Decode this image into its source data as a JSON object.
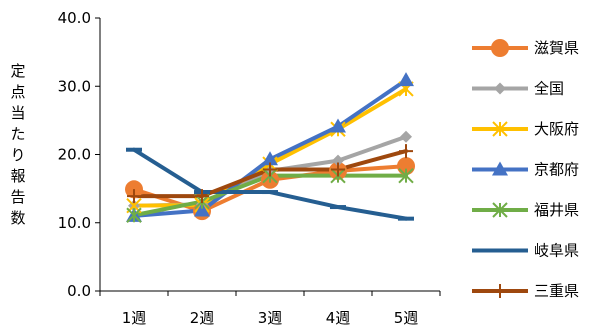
{
  "chart_data": {
    "type": "line",
    "title": "",
    "xlabel": "",
    "ylabel": "定点当たり報告数",
    "categories": [
      "1週",
      "2週",
      "3週",
      "4週",
      "5週"
    ],
    "ylim": [
      0,
      40
    ],
    "yticks": [
      "0.0",
      "10.0",
      "20.0",
      "30.0",
      "40.0"
    ],
    "ytick_values": [
      0,
      10,
      20,
      30,
      40
    ],
    "grid": false,
    "legend_position": "right",
    "series": [
      {
        "name": "滋賀県",
        "color": "#ED7D31",
        "marker": "circle",
        "values": [
          14.9,
          11.7,
          16.3,
          17.6,
          18.3
        ]
      },
      {
        "name": "全国",
        "color": "#A5A5A5",
        "marker": "diamond",
        "values": [
          12.5,
          12.7,
          17.6,
          19.1,
          22.6
        ]
      },
      {
        "name": "大阪府",
        "color": "#FFC000",
        "marker": "asterisk",
        "values": [
          12.5,
          12.6,
          18.6,
          23.7,
          29.6
        ]
      },
      {
        "name": "京都府",
        "color": "#4472C4",
        "marker": "triangle",
        "values": [
          11.0,
          11.8,
          19.3,
          24.1,
          30.9
        ]
      },
      {
        "name": "福井県",
        "color": "#70AD47",
        "marker": "asterisk",
        "values": [
          11.1,
          13.1,
          16.9,
          16.9,
          16.9
        ]
      },
      {
        "name": "岐阜県",
        "color": "#255E91",
        "marker": "dash",
        "values": [
          20.7,
          14.5,
          14.5,
          12.3,
          10.6
        ]
      },
      {
        "name": "三重県",
        "color": "#9E480E",
        "marker": "plus",
        "values": [
          13.9,
          13.9,
          17.8,
          17.8,
          20.5
        ]
      }
    ]
  }
}
